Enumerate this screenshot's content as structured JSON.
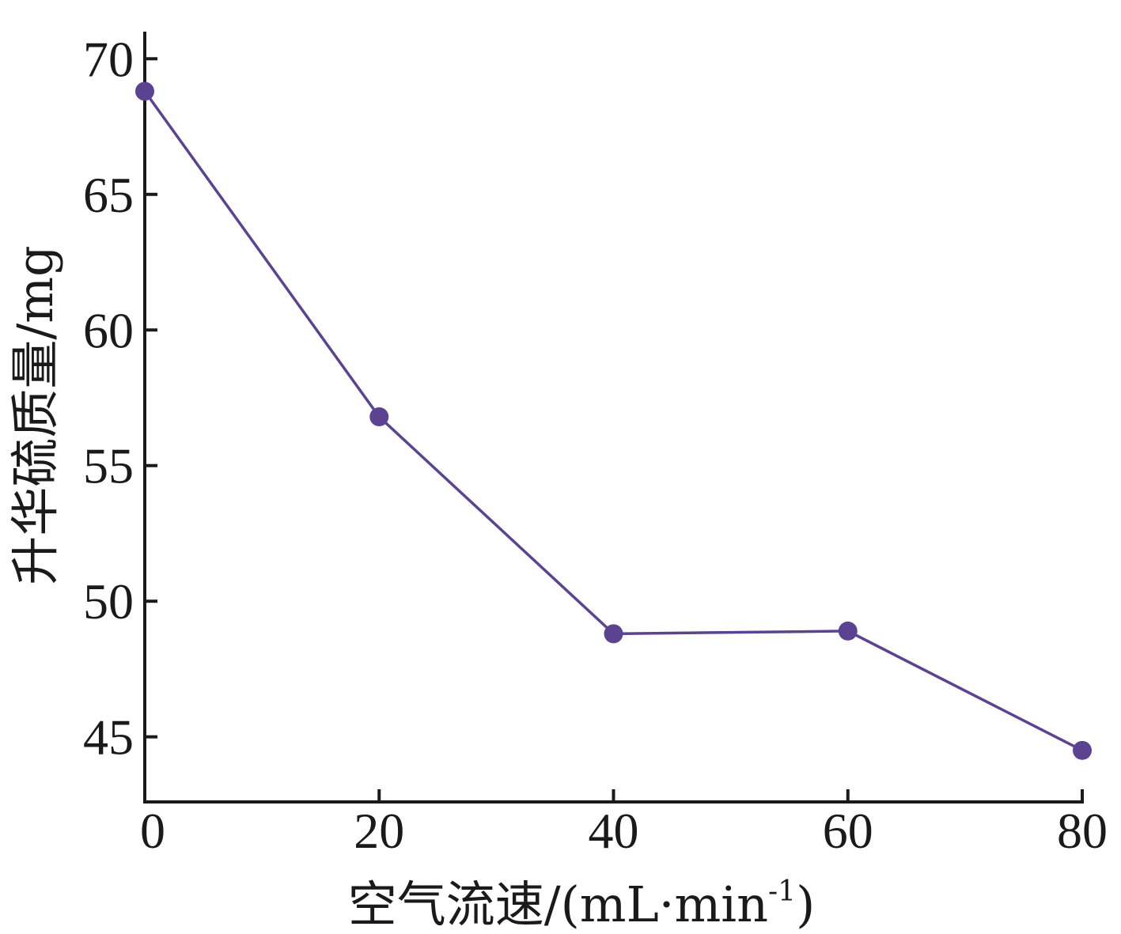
{
  "chart_data": {
    "type": "line",
    "title": "",
    "xlabel": "空气流速/(mL·min",
    "xlabel_sup": "-1",
    "xlabel_close": ")",
    "ylabel": "升华硫质量/mg",
    "xlim": [
      0,
      80
    ],
    "ylim": [
      42.6,
      71
    ],
    "x_ticks": [
      0,
      20,
      40,
      60,
      80
    ],
    "x_tick_labels": [
      "0",
      "20",
      "40",
      "60",
      "80"
    ],
    "y_ticks": [
      45,
      50,
      55,
      60,
      65,
      70
    ],
    "y_tick_labels": [
      "45",
      "50",
      "55",
      "60",
      "65",
      "70"
    ],
    "grid": false,
    "legend": "none",
    "series": [
      {
        "x": [
          0,
          20,
          40,
          60,
          80
        ],
        "values": [
          68.8,
          56.8,
          48.8,
          48.9,
          44.5
        ]
      }
    ],
    "colors": {
      "line": "#5b4392",
      "marker": "#5b4392",
      "axis": "#1a1a1a"
    }
  }
}
